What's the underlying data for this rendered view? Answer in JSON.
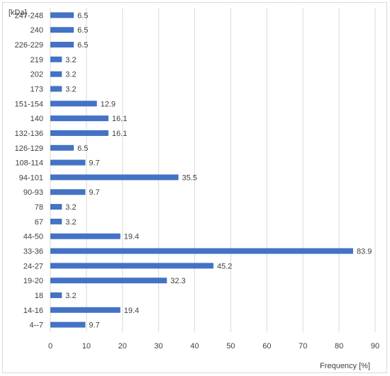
{
  "chart_data": {
    "type": "bar",
    "orientation": "horizontal",
    "title": "",
    "ylabel": "[kDa]",
    "xlabel": "Frequency [%]",
    "xlim": [
      0,
      90
    ],
    "xticks": [
      0,
      10,
      20,
      30,
      40,
      50,
      60,
      70,
      80,
      90
    ],
    "grid": true,
    "bar_color": "#4472c4",
    "categories": [
      "247-248",
      "240",
      "226-229",
      "219",
      "202",
      "173",
      "151-154",
      "140",
      "132-136",
      "126-129",
      "108-114",
      "94-101",
      "90-93",
      "78",
      "67",
      "44-50",
      "33-36",
      "24-27",
      "19-20",
      "18",
      "14-16",
      "4--7"
    ],
    "values": [
      6.5,
      6.5,
      6.5,
      3.2,
      3.2,
      3.2,
      12.9,
      16.1,
      16.1,
      6.5,
      9.7,
      35.5,
      9.7,
      3.2,
      3.2,
      19.4,
      83.9,
      45.2,
      32.3,
      3.2,
      19.4,
      9.7
    ]
  }
}
